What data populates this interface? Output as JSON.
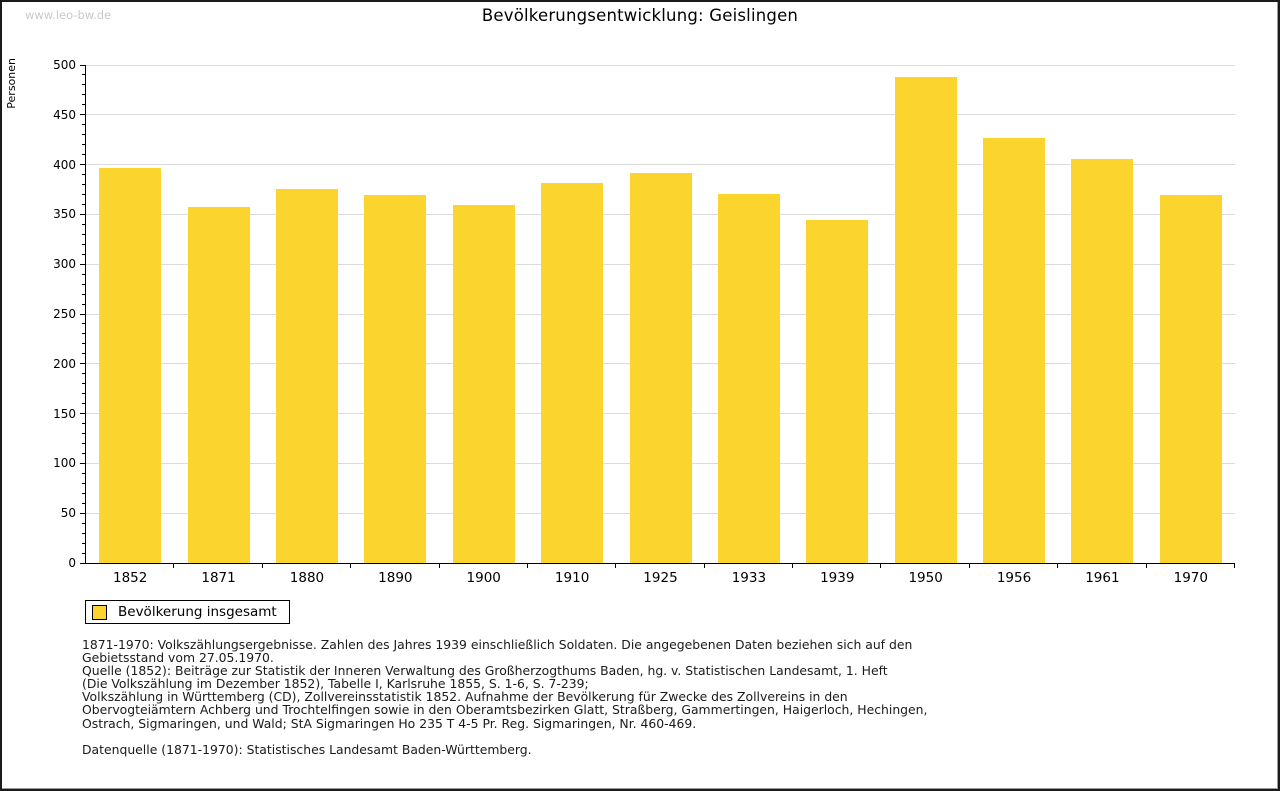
{
  "watermark": "www.leo-bw.de",
  "chart_data": {
    "type": "bar",
    "title": "Bevölkerungsentwicklung: Geislingen",
    "xlabel": "",
    "ylabel": "Personen",
    "ylim": [
      0,
      500
    ],
    "ytick_interval": 50,
    "minor_tick_interval": 10,
    "grid": true,
    "bar_color": "#FCD42E",
    "gridline_color": "#dcdcdc",
    "categories": [
      "1852",
      "1871",
      "1880",
      "1890",
      "1900",
      "1910",
      "1925",
      "1933",
      "1939",
      "1950",
      "1956",
      "1961",
      "1970"
    ],
    "values": [
      397,
      357,
      375,
      369,
      359,
      382,
      392,
      370,
      344,
      488,
      427,
      406,
      369
    ],
    "legend": {
      "label": "Bevölkerung insgesamt",
      "position": "bottom-left"
    }
  },
  "footer": {
    "lines": [
      "1871-1970: Volkszählungsergebnisse. Zahlen des Jahres 1939 einschließlich Soldaten. Die angegebenen Daten beziehen sich auf den",
      "Gebietsstand vom 27.05.1970.",
      "Quelle (1852): Beiträge zur Statistik der Inneren Verwaltung des Großherzogthums Baden, hg. v. Statistischen Landesamt, 1. Heft",
      "(Die Volkszählung im Dezember 1852), Tabelle I, Karlsruhe 1855, S. 1-6, S. 7-239;",
      "Volkszählung in Württemberg (CD), Zollvereinsstatistik 1852. Aufnahme der Bevölkerung für Zwecke des Zollvereins in den",
      "Obervogteiämtern Achberg und Trochtelfingen sowie in den Oberamtsbezirken Glatt, Straßberg, Gammertingen, Haigerloch, Hechingen,",
      "Ostrach, Sigmaringen, und Wald; StA Sigmaringen Ho 235 T 4-5 Pr. Reg. Sigmaringen, Nr. 460-469."
    ],
    "datasource": "Datenquelle (1871-1970): Statistisches Landesamt Baden-Württemberg."
  }
}
